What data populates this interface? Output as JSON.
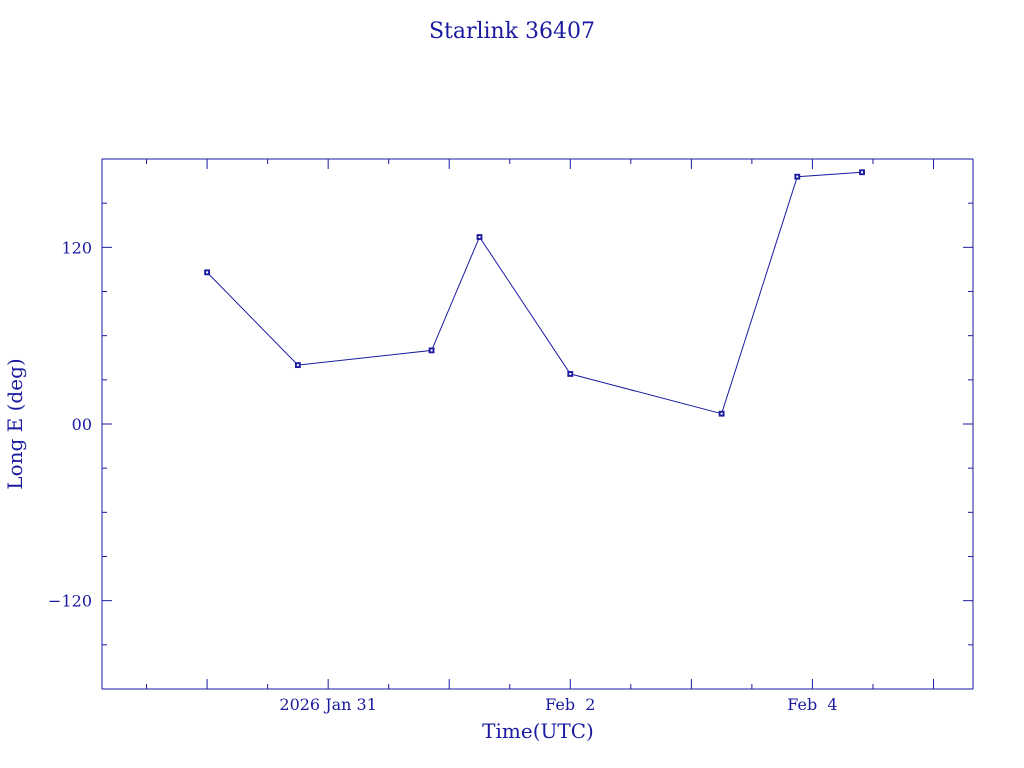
{
  "chart_data": {
    "type": "line",
    "title": "Starlink 36407",
    "xlabel": "Time(UTC)",
    "ylabel": "Long E (deg)",
    "x_tick_labels": [
      {
        "date": "2026-01-31",
        "label": "2026 Jan 31"
      },
      {
        "date": "2026-02-02",
        "label": "Feb  2"
      },
      {
        "date": "2026-02-04",
        "label": "Feb  4"
      }
    ],
    "y_ticks": [
      {
        "value": 120,
        "label": "120"
      },
      {
        "value": 0,
        "label": "00"
      },
      {
        "value": -120,
        "label": "−120"
      }
    ],
    "xlim": [
      "2026-01-29T03:10",
      "2026-02-05T07:50"
    ],
    "ylim": [
      -180,
      180
    ],
    "grid": false,
    "colors": {
      "series": "#1a1aa0",
      "axes": "#1a1aa0",
      "labels": "#1a1aa0"
    },
    "series": [
      {
        "points": [
          {
            "x": "2026-01-30T00:00",
            "y": 103
          },
          {
            "x": "2026-01-30T18:00",
            "y": 40
          },
          {
            "x": "2026-01-31T20:30",
            "y": 50
          },
          {
            "x": "2026-02-01T06:00",
            "y": 127
          },
          {
            "x": "2026-02-02T00:00",
            "y": 34
          },
          {
            "x": "2026-02-03T06:00",
            "y": 7
          },
          {
            "x": "2026-02-03T21:00",
            "y": 168
          },
          {
            "x": "2026-02-04T09:50",
            "y": 171
          }
        ]
      }
    ]
  }
}
